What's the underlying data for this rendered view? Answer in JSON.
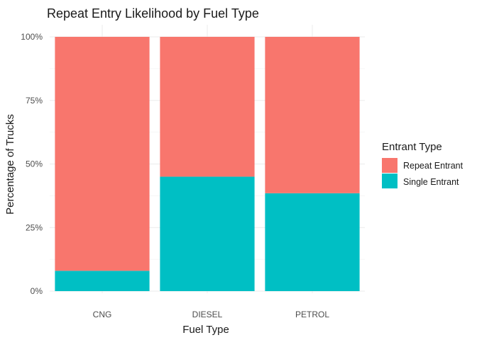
{
  "colors": {
    "repeat_entrant": "#F8766D",
    "single_entrant": "#00BFC4"
  },
  "chart_data": {
    "type": "bar",
    "stacked": true,
    "title": "Repeat Entry Likelihood by Fuel Type",
    "xlabel": "Fuel Type",
    "ylabel": "Percentage of Trucks",
    "categories": [
      "CNG",
      "DIESEL",
      "PETROL"
    ],
    "ylim": [
      0,
      100
    ],
    "yticks": [
      "0%",
      "25%",
      "50%",
      "75%",
      "100%"
    ],
    "grid": true,
    "legend": {
      "title": "Entrant Type",
      "placement": "right",
      "entries": [
        "Repeat Entrant",
        "Single Entrant"
      ]
    },
    "series": [
      {
        "name": "Single Entrant",
        "values": [
          8,
          45,
          38.5
        ]
      },
      {
        "name": "Repeat Entrant",
        "values": [
          92,
          55,
          61.5
        ]
      }
    ]
  }
}
